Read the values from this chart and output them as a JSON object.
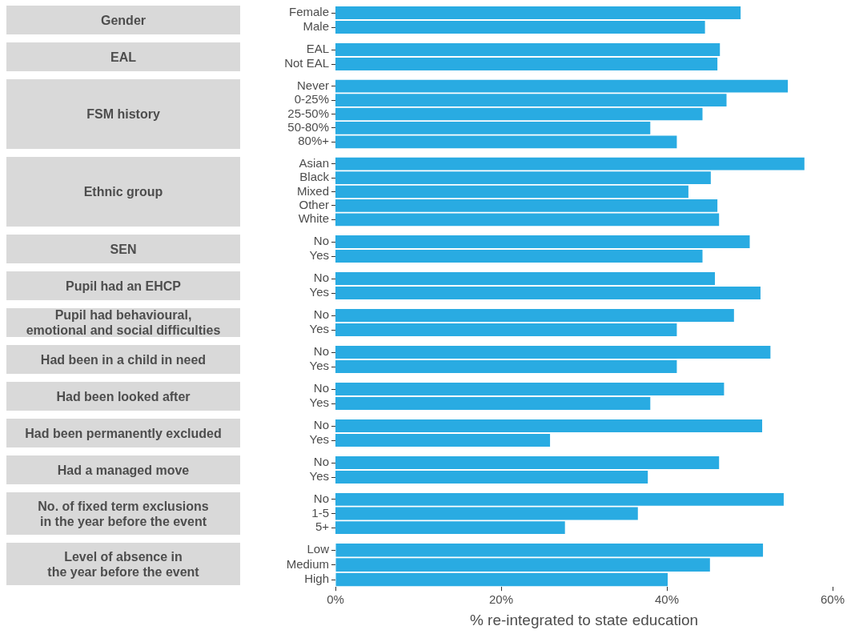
{
  "chart_data": [
    {
      "type": "bar",
      "orientation": "horizontal",
      "ylabel": "Gender",
      "categories": [
        "Female",
        "Male"
      ],
      "values": [
        48.9,
        44.6
      ],
      "color": "#29abe2",
      "xlim": [
        0,
        60
      ],
      "tick_labels": "y"
    },
    {
      "type": "bar",
      "orientation": "horizontal",
      "ylabel": "EAL",
      "categories": [
        "EAL",
        "Not EAL"
      ],
      "values": [
        46.4,
        46.1
      ],
      "color": "#29abe2",
      "xlim": [
        0,
        60
      ],
      "tick_labels": "y"
    },
    {
      "type": "bar",
      "orientation": "horizontal",
      "ylabel": "FSM history",
      "categories": [
        "Never",
        "0-25%",
        "25-50%",
        "50-80%",
        "80%+"
      ],
      "values": [
        54.6,
        47.2,
        44.3,
        38.0,
        41.2
      ],
      "color": "#29abe2",
      "xlim": [
        0,
        60
      ],
      "tick_labels": "y"
    },
    {
      "type": "bar",
      "orientation": "horizontal",
      "ylabel": "Ethnic group",
      "categories": [
        "Asian",
        "Black",
        "Mixed",
        "Other",
        "White"
      ],
      "values": [
        56.6,
        45.3,
        42.6,
        46.1,
        46.3
      ],
      "color": "#29abe2",
      "xlim": [
        0,
        60
      ],
      "tick_labels": "y"
    },
    {
      "type": "bar",
      "orientation": "horizontal",
      "ylabel": "SEN",
      "categories": [
        "No",
        "Yes"
      ],
      "values": [
        50.0,
        44.3
      ],
      "color": "#29abe2",
      "xlim": [
        0,
        60
      ],
      "tick_labels": "y"
    },
    {
      "type": "bar",
      "orientation": "horizontal",
      "ylabel": "Pupil had an EHCP",
      "categories": [
        "No",
        "Yes"
      ],
      "values": [
        45.8,
        51.3
      ],
      "color": "#29abe2",
      "xlim": [
        0,
        60
      ],
      "tick_labels": "y"
    },
    {
      "type": "bar",
      "orientation": "horizontal",
      "ylabel": "Pupil had behavioural,\nemotional and social difficulties",
      "categories": [
        "No",
        "Yes"
      ],
      "values": [
        48.1,
        41.2
      ],
      "color": "#29abe2",
      "xlim": [
        0,
        60
      ],
      "tick_labels": "y"
    },
    {
      "type": "bar",
      "orientation": "horizontal",
      "ylabel": "Had been in a child in need",
      "categories": [
        "No",
        "Yes"
      ],
      "values": [
        52.5,
        41.2
      ],
      "color": "#29abe2",
      "xlim": [
        0,
        60
      ],
      "tick_labels": "y"
    },
    {
      "type": "bar",
      "orientation": "horizontal",
      "ylabel": "Had been looked after",
      "categories": [
        "No",
        "Yes"
      ],
      "values": [
        46.9,
        38.0
      ],
      "color": "#29abe2",
      "xlim": [
        0,
        60
      ],
      "tick_labels": "y"
    },
    {
      "type": "bar",
      "orientation": "horizontal",
      "ylabel": "Had been permanently excluded",
      "categories": [
        "No",
        "Yes"
      ],
      "values": [
        51.5,
        25.9
      ],
      "color": "#29abe2",
      "xlim": [
        0,
        60
      ],
      "tick_labels": "y"
    },
    {
      "type": "bar",
      "orientation": "horizontal",
      "ylabel": "Had a managed move",
      "categories": [
        "No",
        "Yes"
      ],
      "values": [
        46.3,
        37.7
      ],
      "color": "#29abe2",
      "xlim": [
        0,
        60
      ],
      "tick_labels": "y"
    },
    {
      "type": "bar",
      "orientation": "horizontal",
      "ylabel": "No. of fixed term exclusions\n in the year before the event",
      "categories": [
        "No",
        "1-5",
        "5+"
      ],
      "values": [
        54.1,
        36.5,
        27.7
      ],
      "color": "#29abe2",
      "xlim": [
        0,
        60
      ],
      "tick_labels": "y"
    },
    {
      "type": "bar",
      "orientation": "horizontal",
      "ylabel": "Level of absence in\nthe year before the event",
      "categories": [
        "Low",
        "Medium",
        "High"
      ],
      "values": [
        51.6,
        45.2,
        40.1
      ],
      "color": "#29abe2",
      "xlim": [
        0,
        60
      ],
      "xticks": [
        {
          "value": 0,
          "label": "0%"
        },
        {
          "value": 20,
          "label": "20%"
        },
        {
          "value": 40,
          "label": "40%"
        },
        {
          "value": 60,
          "label": "60%"
        }
      ],
      "xlabel": "% re-integrated to state education"
    }
  ]
}
